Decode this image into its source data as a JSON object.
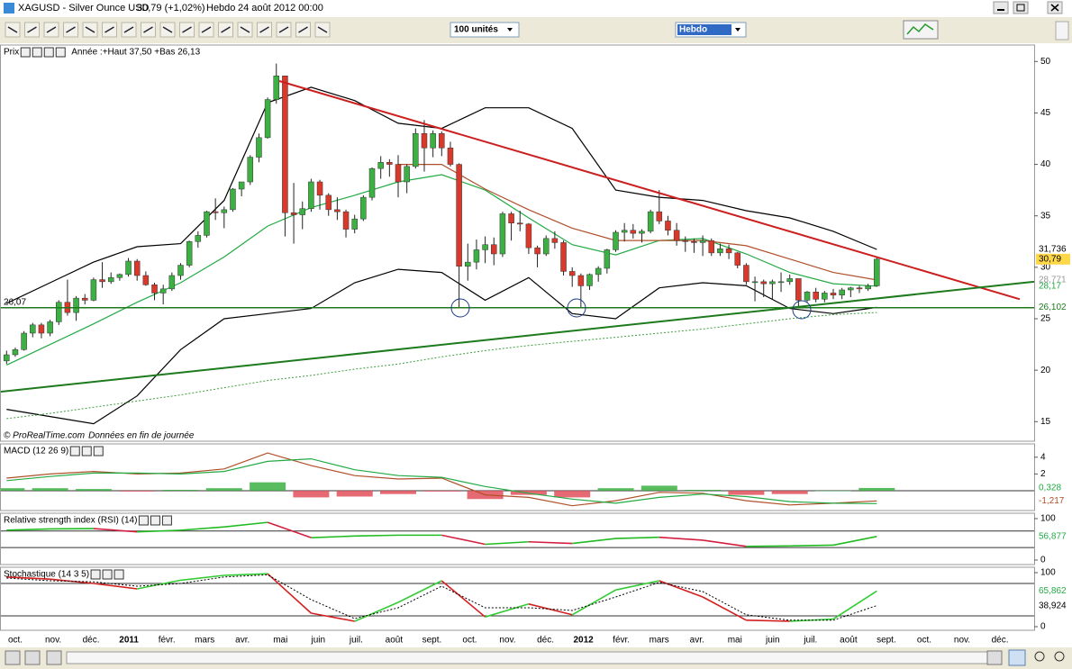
{
  "window": {
    "title": "XAGUSD - Silver Ounce USD",
    "quote": "30,79 (+1,02%)",
    "period": "Hebdo",
    "date": "24 août 2012 00:00"
  },
  "toolbar": {
    "units": "100 unités",
    "timeframe": "Hebdo"
  },
  "date_axis": {
    "labels": [
      "oct.",
      "nov.",
      "déc.",
      "2011",
      "févr.",
      "mars",
      "avr.",
      "mai",
      "juin",
      "juil.",
      "août",
      "sept.",
      "oct.",
      "nov.",
      "déc.",
      "2012",
      "févr.",
      "mars",
      "avr.",
      "mai",
      "juin",
      "juil.",
      "août",
      "sept.",
      "oct.",
      "nov.",
      "déc."
    ]
  },
  "chart_data": [
    {
      "type": "candlestick",
      "title": "Prix",
      "annotation": "Année :+Haut 37,50 +Bas 26,13",
      "footer": "© ProRealTime.com",
      "footer_note": "Données en fin de journée",
      "up_color": "#3cb043",
      "down_color": "#d9392b",
      "ylim": [
        13.1,
        51.6
      ],
      "yticks": [
        15,
        20,
        25,
        30,
        35,
        40,
        45,
        50
      ],
      "candles": [
        [
          20.9,
          21.9,
          20.6,
          21.5
        ],
        [
          21.5,
          22.2,
          21.3,
          22.0
        ],
        [
          22.0,
          23.8,
          21.9,
          23.6
        ],
        [
          23.6,
          24.6,
          23.2,
          24.4
        ],
        [
          24.4,
          24.6,
          23.1,
          23.6
        ],
        [
          23.6,
          24.9,
          23.3,
          24.7
        ],
        [
          24.7,
          26.8,
          24.4,
          26.6
        ],
        [
          26.6,
          28.8,
          25.3,
          25.6
        ],
        [
          25.6,
          27.2,
          24.8,
          27.0
        ],
        [
          27.0,
          27.4,
          26.4,
          26.8
        ],
        [
          26.8,
          29.0,
          26.7,
          28.8
        ],
        [
          28.8,
          30.5,
          28.0,
          28.6
        ],
        [
          28.6,
          29.5,
          28.4,
          29.0
        ],
        [
          29.0,
          29.4,
          28.7,
          29.3
        ],
        [
          29.3,
          30.9,
          29.1,
          30.6
        ],
        [
          30.6,
          30.8,
          28.7,
          29.2
        ],
        [
          29.2,
          29.6,
          28.2,
          28.3
        ],
        [
          28.3,
          28.5,
          26.8,
          27.5
        ],
        [
          27.5,
          28.3,
          26.4,
          27.9
        ],
        [
          27.9,
          29.5,
          27.7,
          29.2
        ],
        [
          29.2,
          30.4,
          28.8,
          30.2
        ],
        [
          30.2,
          32.6,
          30.0,
          32.5
        ],
        [
          32.5,
          33.5,
          31.9,
          33.1
        ],
        [
          33.1,
          35.5,
          32.9,
          35.4
        ],
        [
          35.4,
          36.7,
          34.6,
          35.3
        ],
        [
          35.3,
          35.9,
          33.8,
          35.6
        ],
        [
          35.6,
          37.7,
          35.4,
          37.6
        ],
        [
          37.6,
          38.3,
          36.9,
          38.3
        ],
        [
          38.3,
          40.9,
          38.0,
          40.7
        ],
        [
          40.7,
          43.0,
          40.2,
          42.6
        ],
        [
          42.6,
          46.5,
          42.5,
          46.3
        ],
        [
          46.3,
          49.8,
          45.9,
          48.6
        ],
        [
          48.6,
          48.6,
          33.0,
          35.3
        ],
        [
          35.3,
          38.2,
          32.3,
          35.1
        ],
        [
          35.1,
          36.4,
          33.7,
          35.7
        ],
        [
          35.7,
          38.6,
          35.4,
          38.3
        ],
        [
          38.3,
          38.5,
          35.6,
          37.0
        ],
        [
          37.0,
          37.2,
          35.0,
          35.6
        ],
        [
          35.6,
          36.8,
          34.6,
          35.4
        ],
        [
          35.4,
          35.6,
          32.9,
          33.7
        ],
        [
          33.7,
          35.1,
          33.3,
          34.7
        ],
        [
          34.7,
          37.0,
          34.5,
          36.8
        ],
        [
          36.8,
          39.7,
          36.5,
          39.6
        ],
        [
          39.6,
          40.8,
          38.6,
          40.2
        ],
        [
          40.2,
          40.5,
          38.8,
          40.0
        ],
        [
          40.0,
          40.9,
          36.8,
          38.3
        ],
        [
          38.3,
          40.0,
          37.2,
          39.8
        ],
        [
          39.8,
          43.5,
          39.6,
          43.0
        ],
        [
          43.0,
          44.3,
          39.3,
          41.6
        ],
        [
          41.6,
          43.3,
          40.7,
          43.0
        ],
        [
          43.0,
          43.2,
          40.8,
          41.6
        ],
        [
          41.6,
          42.2,
          39.8,
          40.0
        ],
        [
          40.0,
          40.1,
          26.1,
          30.1
        ],
        [
          30.1,
          32.3,
          28.7,
          30.5
        ],
        [
          30.5,
          32.7,
          29.8,
          31.7
        ],
        [
          31.7,
          33.0,
          30.4,
          32.2
        ],
        [
          32.2,
          32.9,
          30.2,
          31.3
        ],
        [
          31.3,
          35.4,
          31.0,
          35.2
        ],
        [
          35.2,
          35.4,
          32.6,
          34.3
        ],
        [
          34.3,
          35.5,
          33.5,
          34.2
        ],
        [
          34.2,
          34.3,
          31.3,
          31.9
        ],
        [
          31.9,
          32.1,
          30.0,
          31.3
        ],
        [
          31.3,
          33.1,
          31.1,
          32.8
        ],
        [
          32.8,
          33.5,
          31.8,
          32.4
        ],
        [
          32.4,
          32.6,
          29.2,
          29.6
        ],
        [
          29.6,
          30.0,
          28.1,
          29.2
        ],
        [
          29.2,
          29.4,
          26.1,
          28.2
        ],
        [
          28.2,
          29.4,
          27.8,
          29.3
        ],
        [
          29.3,
          30.1,
          28.6,
          29.9
        ],
        [
          29.9,
          31.8,
          29.4,
          31.7
        ],
        [
          31.7,
          33.6,
          31.5,
          33.4
        ],
        [
          33.4,
          34.3,
          32.5,
          33.6
        ],
        [
          33.6,
          34.2,
          32.8,
          33.3
        ],
        [
          33.3,
          33.7,
          32.4,
          33.5
        ],
        [
          33.5,
          35.6,
          33.3,
          35.4
        ],
        [
          35.4,
          37.5,
          34.2,
          34.5
        ],
        [
          34.5,
          35.0,
          33.1,
          33.6
        ],
        [
          33.6,
          34.3,
          32.1,
          32.6
        ],
        [
          32.6,
          33.0,
          31.5,
          32.5
        ],
        [
          32.5,
          32.8,
          31.4,
          32.4
        ],
        [
          32.4,
          33.1,
          31.1,
          32.6
        ],
        [
          32.6,
          32.8,
          31.1,
          31.4
        ],
        [
          31.4,
          32.3,
          31.1,
          31.8
        ],
        [
          31.8,
          32.2,
          30.8,
          31.4
        ],
        [
          31.4,
          31.5,
          29.9,
          30.2
        ],
        [
          30.2,
          30.4,
          28.3,
          28.6
        ],
        [
          28.6,
          29.1,
          26.7,
          28.6
        ],
        [
          28.6,
          28.8,
          27.1,
          28.4
        ],
        [
          28.4,
          28.8,
          26.9,
          28.6
        ],
        [
          28.6,
          29.5,
          27.6,
          28.6
        ],
        [
          28.6,
          29.3,
          28.3,
          28.9
        ],
        [
          28.9,
          28.9,
          26.1,
          26.8
        ],
        [
          26.8,
          27.7,
          26.6,
          27.6
        ],
        [
          27.6,
          28.0,
          26.6,
          26.9
        ],
        [
          26.9,
          27.7,
          26.6,
          27.5
        ],
        [
          27.5,
          27.9,
          26.9,
          27.3
        ],
        [
          27.3,
          28.0,
          26.9,
          27.8
        ],
        [
          27.8,
          28.1,
          27.1,
          28.0
        ],
        [
          28.0,
          28.2,
          27.5,
          27.9
        ],
        [
          27.9,
          28.4,
          27.7,
          28.2
        ],
        [
          28.2,
          31.0,
          28.1,
          30.79
        ]
      ],
      "series": [
        {
          "color": "#000000",
          "values": [
            26.5,
            28.5,
            30.5,
            32.0,
            32.3,
            36.5,
            46,
            47.5,
            46.2,
            44,
            43.5,
            45.5,
            45.5,
            43.5,
            37.5,
            36.8,
            36.5,
            35.5,
            34.8,
            33.5,
            31.736
          ]
        },
        {
          "color": "#000000",
          "values": [
            16.2,
            15.5,
            14.8,
            17.5,
            22,
            25,
            25.5,
            26,
            28.5,
            29.8,
            29.5,
            26.8,
            29.0,
            25.5,
            25,
            28,
            28.5,
            28.2,
            26,
            25.5,
            26.102
          ]
        },
        {
          "color": "#22aa44",
          "values": [
            20.5,
            22.5,
            24.5,
            26.6,
            28.5,
            31,
            34,
            35.8,
            37,
            38.3,
            39,
            37.5,
            34.8,
            32.2,
            31.2,
            32.6,
            32.8,
            31.3,
            29.5,
            28.4,
            28.17
          ]
        },
        {
          "color": "#b0502a",
          "values": [
            null,
            null,
            null,
            null,
            null,
            null,
            null,
            null,
            null,
            40.0,
            40.0,
            37.6,
            35.6,
            33.8,
            32.6,
            32.6,
            32.6,
            32.1,
            30.8,
            29.5,
            28.771
          ]
        },
        {
          "color": "#3f9e3f",
          "dash": true,
          "values": [
            15.3,
            15.8,
            16.4,
            17.0,
            17.6,
            18.3,
            19.0,
            19.5,
            20.1,
            20.6,
            21.3,
            21.9,
            22.4,
            22.8,
            23.2,
            23.6,
            24.0,
            24.5,
            25.0,
            25.4,
            25.6
          ]
        }
      ],
      "trendlines": [
        {
          "color": "#cc1f1f",
          "values": [
            48.1,
            26.9
          ]
        },
        {
          "color": "#1d7a1d",
          "values": [
            17.9,
            28.6
          ]
        }
      ],
      "level": {
        "value": 26.07,
        "label": "26,07",
        "color": "#1d7a1d"
      },
      "markers": [
        {
          "value": 31.736,
          "label": "31,736",
          "color": "#000000"
        },
        {
          "value": 30.79,
          "label": "30,79",
          "color": "#000000",
          "background": "#ffd84a"
        },
        {
          "value": 28.771,
          "label": "28,771",
          "color": "#999999"
        },
        {
          "value": 28.17,
          "label": "28,17",
          "color": "#22aa44"
        },
        {
          "value": 26.102,
          "label": "26,102",
          "color": "#1d7a1d"
        }
      ]
    },
    {
      "type": "macd",
      "title": "MACD (12 26 9)",
      "ylim": [
        -2.37,
        5.59
      ],
      "yticks": [
        2,
        4
      ],
      "levels": [
        0
      ],
      "series": [
        {
          "color": "#b0502a",
          "values": [
            1.5,
            2.0,
            2.3,
            2.0,
            2.1,
            2.6,
            4.5,
            3.0,
            1.8,
            1.4,
            1.5,
            -0.5,
            -0.8,
            -1.8,
            -1.2,
            -0.2,
            -0.3,
            -1.2,
            -1.7,
            -1.5,
            -1.217
          ]
        },
        {
          "color": "#22aa44",
          "values": [
            1.2,
            1.7,
            2.1,
            2.1,
            2.0,
            2.3,
            3.5,
            3.8,
            2.5,
            1.8,
            1.6,
            0.5,
            -0.3,
            -1.0,
            -1.5,
            -0.8,
            -0.4,
            -0.7,
            -1.3,
            -1.5,
            -1.545
          ]
        }
      ],
      "histogram": {
        "up_color": "#3cb043",
        "down_color": "#e0505a",
        "values": [
          0.3,
          0.3,
          0.2,
          -0.1,
          0.1,
          0.3,
          1.0,
          -0.8,
          -0.7,
          -0.4,
          -0.1,
          -1.0,
          -0.5,
          -0.8,
          0.3,
          0.6,
          0.1,
          -0.5,
          -0.4,
          0,
          0.328
        ]
      },
      "markers": [
        {
          "value": 0.328,
          "label": "0,328",
          "color": "#22aa44"
        },
        {
          "value": -1.217,
          "label": "-1,217",
          "color": "#b0502a"
        }
      ]
    },
    {
      "type": "oscillator",
      "title": "Relative strength index (RSI) (14)",
      "ylim": [
        -10.9,
        113
      ],
      "yticks": [
        0,
        100
      ],
      "levels": [
        70,
        30
      ],
      "series": [
        {
          "colors": [
            "#22bb22",
            "#d42040"
          ],
          "values": [
            72,
            75,
            76,
            68,
            72,
            80,
            91,
            54,
            58,
            60,
            60,
            38,
            44,
            40,
            52,
            55,
            48,
            33,
            34,
            36,
            56.877
          ]
        }
      ],
      "markers": [
        {
          "value": 56.877,
          "label": "56,877",
          "color": "#22aa44"
        }
      ]
    },
    {
      "type": "oscillator",
      "title": "Stochastique (14 3 5)",
      "ylim": [
        -6.7,
        110
      ],
      "yticks": [
        0,
        100
      ],
      "levels": [
        80,
        20
      ],
      "series": [
        {
          "colors": [
            "#33cc33",
            "#d42020"
          ],
          "values": [
            92,
            88,
            80,
            70,
            86,
            95,
            98,
            25,
            10,
            45,
            85,
            18,
            42,
            22,
            68,
            85,
            55,
            12,
            10,
            14,
            65.862
          ]
        },
        {
          "color": "#000000",
          "dash": true,
          "values": [
            90,
            85,
            83,
            75,
            80,
            92,
            96,
            50,
            15,
            35,
            75,
            35,
            35,
            30,
            55,
            82,
            65,
            22,
            12,
            12,
            38.924
          ]
        }
      ],
      "markers": [
        {
          "value": 65.862,
          "label": "65,862",
          "color": "#22aa44"
        },
        {
          "value": 38.924,
          "label": "38,924",
          "color": "#000000"
        }
      ]
    }
  ]
}
